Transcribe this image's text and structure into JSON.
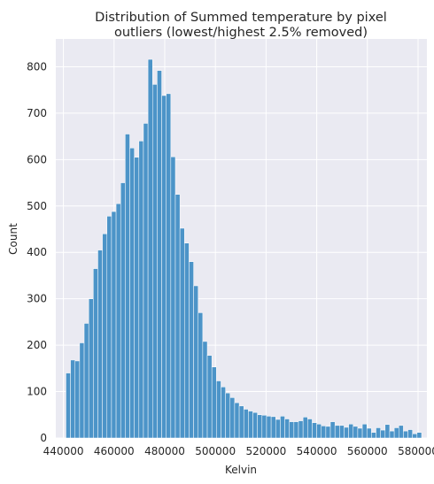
{
  "chart_data": {
    "type": "bar",
    "title_line1": "Distribution of Summed temperature by pixel",
    "title_line2": "outliers (lowest/highest 2.5% removed)",
    "xlabel": "Kelvin",
    "ylabel": "Count",
    "xlim": [
      437000,
      583500
    ],
    "ylim": [
      0,
      860
    ],
    "x_ticks": [
      440000,
      460000,
      480000,
      500000,
      520000,
      540000,
      560000,
      580000
    ],
    "y_ticks": [
      0,
      100,
      200,
      300,
      400,
      500,
      600,
      700,
      800
    ],
    "grid": true,
    "bin_start": 441000,
    "bin_width": 1800,
    "values": [
      140,
      168,
      166,
      205,
      247,
      300,
      365,
      405,
      440,
      478,
      488,
      505,
      550,
      655,
      625,
      605,
      640,
      678,
      816,
      762,
      792,
      738,
      742,
      606,
      525,
      452,
      420,
      380,
      328,
      270,
      208,
      178,
      153,
      123,
      110,
      97,
      87,
      76,
      69,
      62,
      58,
      55,
      50,
      49,
      47,
      46,
      40,
      47,
      41,
      35,
      35,
      37,
      45,
      41,
      33,
      30,
      26,
      25,
      35,
      27,
      27,
      23,
      30,
      25,
      21,
      30,
      21,
      12,
      22,
      17,
      29,
      15,
      22,
      27,
      15,
      18,
      9,
      12
    ]
  }
}
